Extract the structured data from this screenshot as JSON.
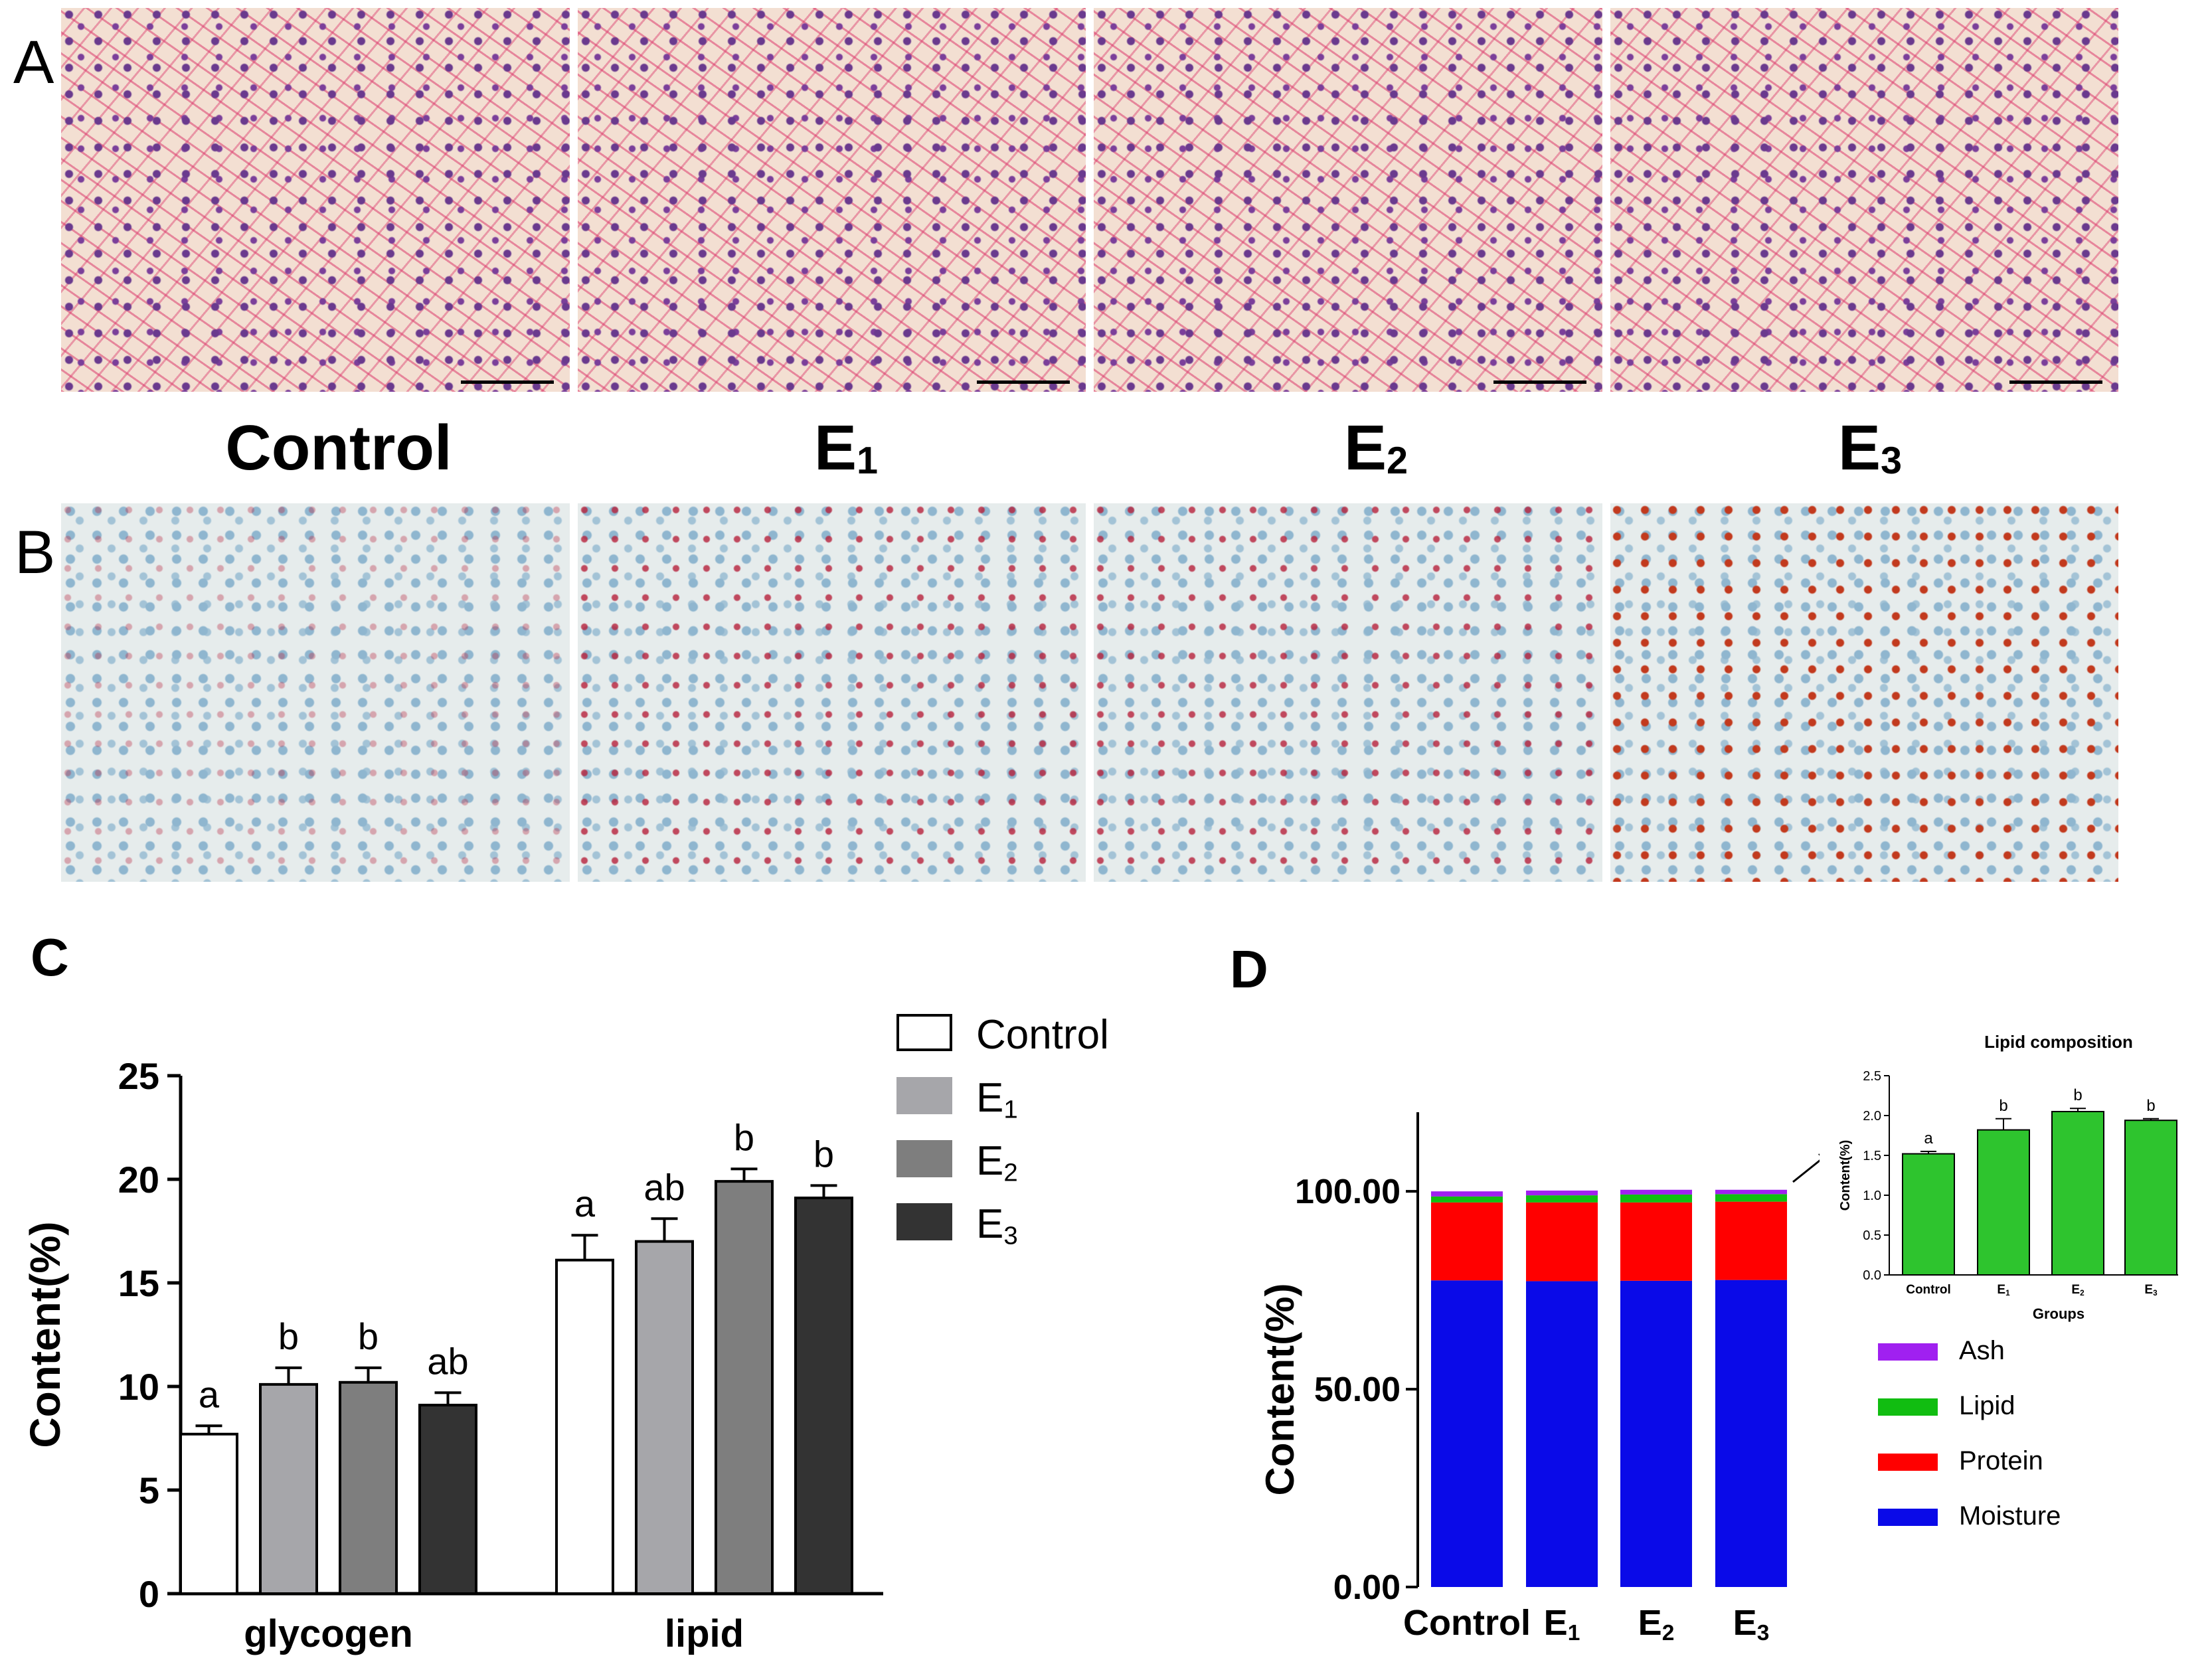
{
  "panels": {
    "a": "A",
    "b": "B",
    "c": "C",
    "d": "D"
  },
  "groups": [
    {
      "main": "Control",
      "sub": ""
    },
    {
      "main": "E",
      "sub": "1"
    },
    {
      "main": "E",
      "sub": "2"
    },
    {
      "main": "E",
      "sub": "3"
    }
  ],
  "chart_data": [
    {
      "type": "bar",
      "panel": "C",
      "categories": [
        "glycogen",
        "lipid"
      ],
      "ylabel": "Content(%)",
      "ylim": [
        0,
        25
      ],
      "yticks": [
        0,
        5,
        10,
        15,
        20,
        25
      ],
      "series": [
        {
          "name": "Control",
          "values": [
            7.7,
            16.1
          ],
          "errors": [
            0.4,
            1.2
          ],
          "letters": [
            "a",
            "a"
          ],
          "color": "#ffffff"
        },
        {
          "name": "E1",
          "values": [
            10.1,
            17.0
          ],
          "errors": [
            0.8,
            1.1
          ],
          "letters": [
            "b",
            "ab"
          ],
          "color": "#a6a6aa"
        },
        {
          "name": "E2",
          "values": [
            10.2,
            19.9
          ],
          "errors": [
            0.7,
            0.6
          ],
          "letters": [
            "b",
            "b"
          ],
          "color": "#7e7e7e"
        },
        {
          "name": "E3",
          "values": [
            9.1,
            19.1
          ],
          "errors": [
            0.6,
            0.6
          ],
          "letters": [
            "ab",
            "b"
          ],
          "color": "#333333"
        }
      ]
    },
    {
      "type": "bar",
      "stacked": true,
      "panel": "D",
      "categories": [
        "Control",
        "E1",
        "E2",
        "E3"
      ],
      "ylabel": "Content(%)",
      "ylim": [
        0,
        120
      ],
      "yticks": [
        "0.00",
        "50.00",
        "100.00"
      ],
      "series": [
        {
          "name": "Moisture",
          "values": [
            77.5,
            77.3,
            77.4,
            77.6
          ],
          "color": "#0a0ae8"
        },
        {
          "name": "Protein",
          "values": [
            19.7,
            19.9,
            19.8,
            19.8
          ],
          "color": "#ff0000"
        },
        {
          "name": "Lipid",
          "values": [
            1.5,
            1.8,
            2.0,
            1.9
          ],
          "color": "#11bd11"
        },
        {
          "name": "Ash",
          "values": [
            1.3,
            1.2,
            1.2,
            1.1
          ],
          "color": "#a020f0"
        }
      ]
    },
    {
      "type": "bar",
      "panel": "D-inset",
      "title": "Lipid composition",
      "xlabel": "Groups",
      "ylabel": "Content(%)",
      "categories": [
        "Control",
        "E1",
        "E2",
        "E3"
      ],
      "values": [
        1.52,
        1.82,
        2.05,
        1.94
      ],
      "errors": [
        0.03,
        0.14,
        0.04,
        0.02
      ],
      "letters": [
        "a",
        "b",
        "b",
        "b"
      ],
      "ylim": [
        0,
        2.5
      ],
      "yticks": [
        "0.0",
        "0.5",
        "1.0",
        "1.5",
        "2.0",
        "2.5"
      ],
      "color": "#2ec42e"
    }
  ]
}
